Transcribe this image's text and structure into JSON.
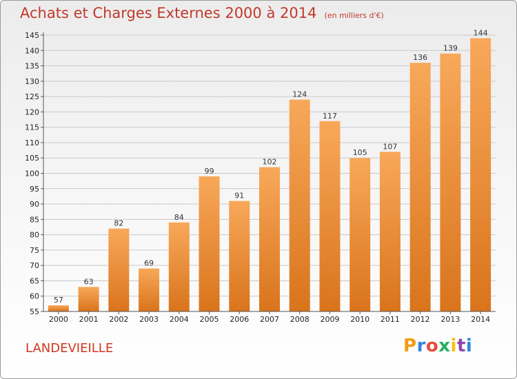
{
  "header": {
    "title": "Achats et Charges Externes 2000 à 2014",
    "unit": "(en milliers d'€)"
  },
  "footer": {
    "place": "LANDEVIEILLE",
    "logo": [
      "P",
      "r",
      "o",
      "x",
      "i",
      "t",
      "i"
    ],
    "logo_colors": [
      "#f39c12",
      "#2e86de",
      "#e74c3c",
      "#27ae60",
      "#f1c40f",
      "#8e44ad",
      "#2e86de"
    ]
  },
  "chart_data": {
    "type": "bar",
    "title": "Achats et Charges Externes 2000 à 2014",
    "categories": [
      "2000",
      "2001",
      "2002",
      "2003",
      "2004",
      "2005",
      "2006",
      "2007",
      "2008",
      "2009",
      "2010",
      "2011",
      "2012",
      "2013",
      "2014"
    ],
    "values": [
      57,
      63,
      82,
      69,
      84,
      99,
      91,
      102,
      124,
      117,
      105,
      107,
      136,
      139,
      144
    ],
    "ylim": [
      55,
      145
    ],
    "yticks": [
      55,
      60,
      65,
      70,
      75,
      80,
      85,
      90,
      95,
      100,
      105,
      110,
      115,
      120,
      125,
      130,
      135,
      140,
      145
    ],
    "grid": true,
    "bar_color_top": "#f8a85a",
    "bar_color_bottom": "#d9741c",
    "grid_color": "#c9c9c9",
    "title_color": "#c0392b"
  }
}
